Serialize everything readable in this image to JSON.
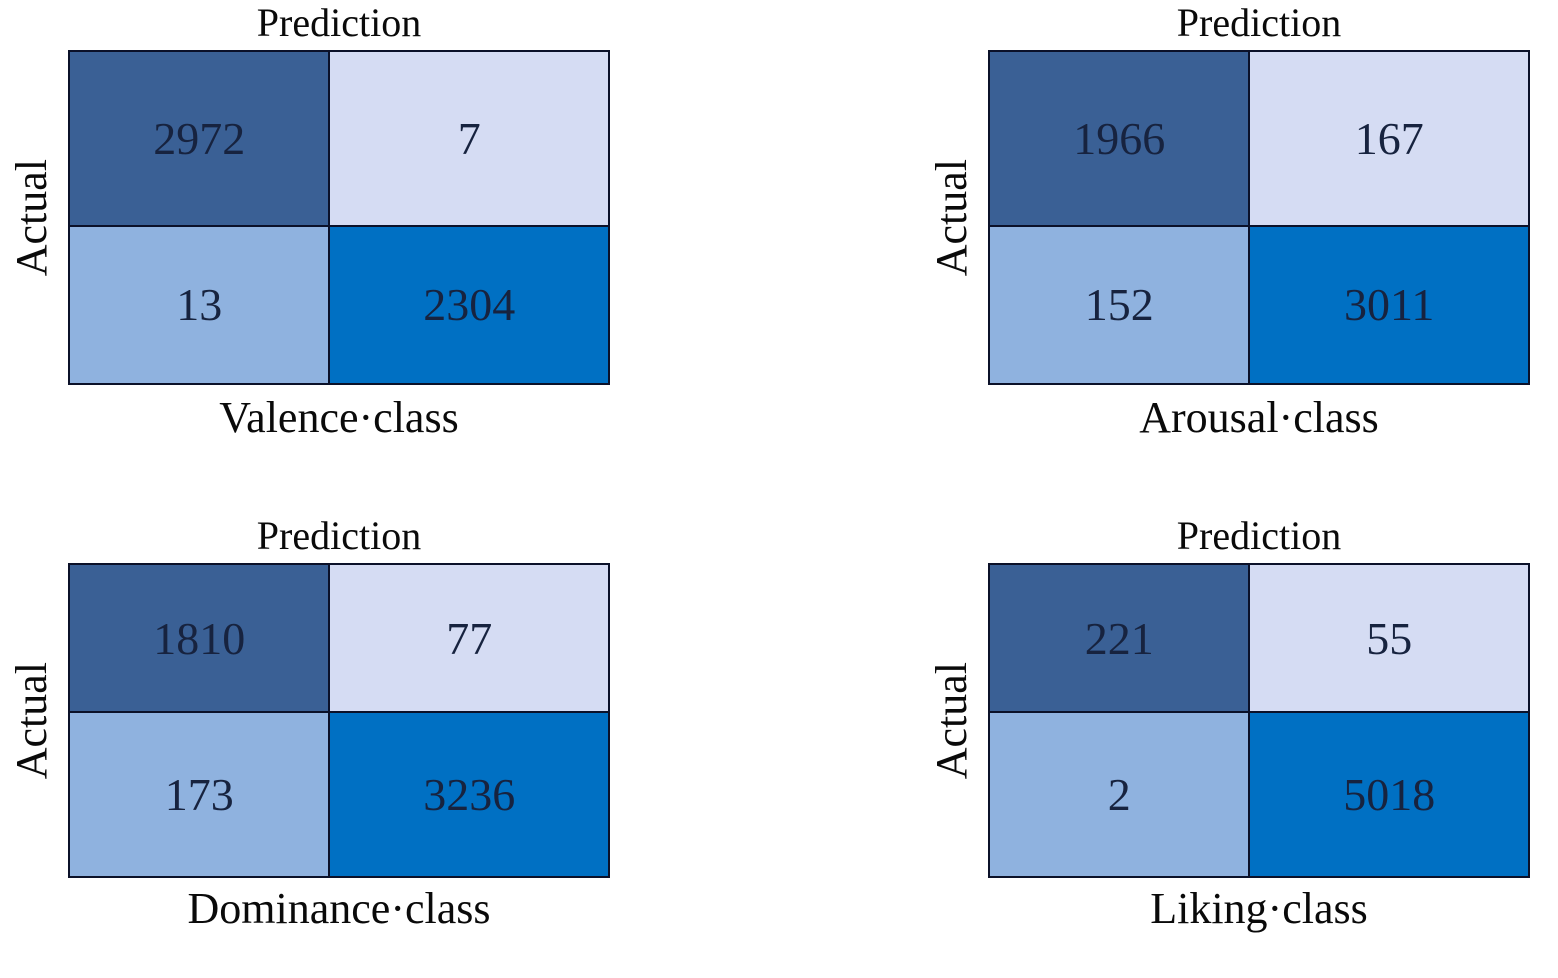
{
  "figure": {
    "description_top_axis": "Prediction",
    "description_side_axis": "Actual"
  },
  "colors": {
    "cell_top_left": "#3A6095",
    "cell_top_right": "#D5DCF3",
    "cell_bottom_left": "#8FB2DF",
    "cell_bottom_right": "#0070C3",
    "grid_line": "#0B1129",
    "number_text": "#17233F",
    "label_text": "#0A0A0A",
    "background": "#FFFFFF"
  },
  "panels": [
    {
      "id": "valence",
      "top_label": "Prediction",
      "side_label": "Actual",
      "bottom_label": "Valence·class",
      "cells": [
        "2972",
        "7",
        "13",
        "2304"
      ]
    },
    {
      "id": "arousal",
      "top_label": "Prediction",
      "side_label": "Actual",
      "bottom_label": "Arousal·class",
      "cells": [
        "1966",
        "167",
        "152",
        "3011"
      ]
    },
    {
      "id": "dominance",
      "top_label": "Prediction",
      "side_label": "Actual",
      "bottom_label": "Dominance·class",
      "cells": [
        "1810",
        "77",
        "173",
        "3236"
      ]
    },
    {
      "id": "liking",
      "top_label": "Prediction",
      "side_label": "Actual",
      "bottom_label": "Liking·class",
      "cells": [
        "221",
        "55",
        "2",
        "5018"
      ]
    }
  ],
  "chart_data": [
    {
      "type": "heatmap",
      "title": "Valence·class",
      "xlabel": "Prediction",
      "ylabel": "Actual",
      "matrix": [
        [
          2972,
          7
        ],
        [
          13,
          2304
        ]
      ],
      "cell_colors": [
        [
          "#3A6095",
          "#D5DCF3"
        ],
        [
          "#8FB2DF",
          "#0070C3"
        ]
      ],
      "legend": "none",
      "grid": "on"
    },
    {
      "type": "heatmap",
      "title": "Arousal·class",
      "xlabel": "Prediction",
      "ylabel": "Actual",
      "matrix": [
        [
          1966,
          167
        ],
        [
          152,
          3011
        ]
      ],
      "cell_colors": [
        [
          "#3A6095",
          "#D5DCF3"
        ],
        [
          "#8FB2DF",
          "#0070C3"
        ]
      ],
      "legend": "none",
      "grid": "on"
    },
    {
      "type": "heatmap",
      "title": "Dominance·class",
      "xlabel": "Prediction",
      "ylabel": "Actual",
      "matrix": [
        [
          1810,
          77
        ],
        [
          173,
          3236
        ]
      ],
      "cell_colors": [
        [
          "#3A6095",
          "#D5DCF3"
        ],
        [
          "#8FB2DF",
          "#0070C3"
        ]
      ],
      "legend": "none",
      "grid": "on"
    },
    {
      "type": "heatmap",
      "title": "Liking·class",
      "xlabel": "Prediction",
      "ylabel": "Actual",
      "matrix": [
        [
          221,
          55
        ],
        [
          2,
          5018
        ]
      ],
      "cell_colors": [
        [
          "#3A6095",
          "#D5DCF3"
        ],
        [
          "#8FB2DF",
          "#0070C3"
        ]
      ],
      "legend": "none",
      "grid": "on"
    }
  ]
}
